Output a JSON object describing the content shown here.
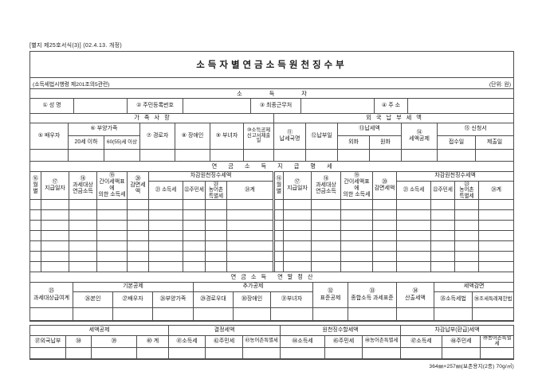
{
  "page": {
    "form_ref": "[별지 제25호서식(3)] (02.4.13. 개정)",
    "title": "소득자별연금소득원천징수부",
    "law_ref": "(소득세법시행령 제201조의5관련)",
    "unit_note": "(단위: 원)",
    "paper_note": "364㎜×257㎜(보존용지(2종) 70g/㎡)"
  },
  "earner": {
    "section_title": "소 득 자",
    "fields": [
      {
        "label": "① 성  명",
        "value": ""
      },
      {
        "label": "② 주민등록번호",
        "value": ""
      },
      {
        "label": "③ 최종근무처",
        "value": ""
      },
      {
        "label": "④ 주  소",
        "value": ""
      }
    ]
  },
  "family": {
    "section_title": "가족사항",
    "spouse": "⑤ 배우자",
    "dependents_group": "⑥ 부양가족",
    "dep_under20": "20세 이하",
    "dep_over60": "60(55)세 이상",
    "senior": "⑦ 경로자",
    "disabled": "⑧ 장애인",
    "woman": "⑨ 부녀자",
    "deduction_report": "⑩소득공제\n신고서제출일"
  },
  "foreign": {
    "section_title": "외국납부세액",
    "country": "⑪\n납세국명",
    "pay_date": "⑫납부일",
    "tax_group": "⑬납세액",
    "fx": "외화",
    "krw": "원화",
    "tax_credit": "⑭\n세액공제",
    "application_group": "⑮ 신청서",
    "receipt_date": "접수일",
    "submit_date": "제출일"
  },
  "pay": {
    "section_title": "연 금 소 득 지 급 명 세",
    "month": "⑯\n월별",
    "pay_date": "⑰\n지급일자",
    "taxable_pension": "⑱\n과세대상\n연금소득",
    "simplified_tax": "⑲\n간이세액표에\n의한 소득세",
    "reduced_tax": "⑳\n감면세액",
    "withholding_group": "차감원천징수세액",
    "income_tax": "㉑ 소득세",
    "resident_tax": "㉒주민세",
    "special_tax": "㉓\n농어촌\n특별세",
    "total": "㉔계"
  },
  "yearend": {
    "section_title": "연금소득 연말정산",
    "taxable_total": "㉕\n과세대상급여계",
    "basic_group": "기본공제",
    "basic": [
      "㉖본인",
      "㉗배우자",
      "㉘부양가족"
    ],
    "additional_group": "추가공제",
    "additional": [
      "㉙경로우대",
      "㉚장애인",
      "㉛부녀자"
    ],
    "standard_deduction": "㉜\n표준공제",
    "tax_base": "㉝\n종합소득 과세표준",
    "calculated_tax": "㉞\n산출세액",
    "reduction_group": "세액감면",
    "reduction": [
      "㉟소득세법",
      "㊱조세특례제한법"
    ]
  },
  "final": {
    "credit_group": "세액공제",
    "credit": [
      "㊲외국납부",
      "㊳",
      "㊴",
      "㊵  계"
    ],
    "determined_group": "결정세액",
    "determined": [
      "㊶소득세",
      "㊷주민세",
      "㊸농어촌특별세"
    ],
    "withhold_group": "원천징수할세액",
    "withhold": [
      "㊹소득세",
      "㊺주민세",
      "㊻농어촌특별세"
    ],
    "balance_group": "차감납부(환급)세액",
    "balance": [
      "㊼소득세",
      "㊽주민세",
      "㊾농어촌특별세"
    ]
  }
}
